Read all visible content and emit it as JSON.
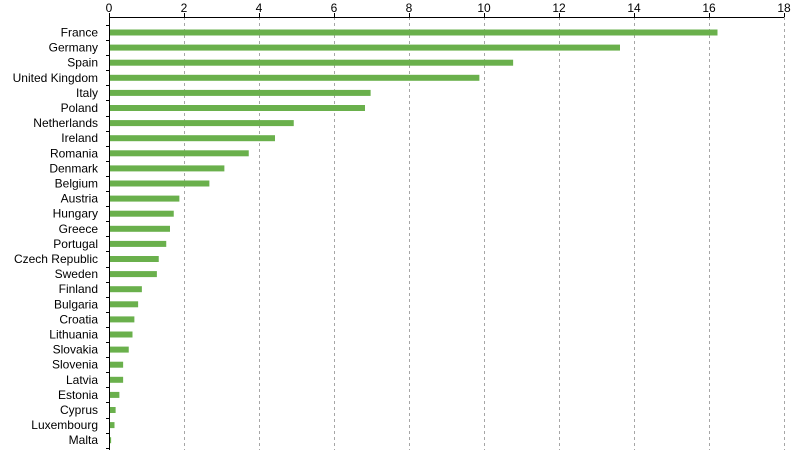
{
  "chart_data": {
    "type": "bar",
    "orientation": "horizontal",
    "x_axis_position": "top",
    "grid": true,
    "xlim": [
      0,
      18
    ],
    "xticks": [
      0,
      2,
      4,
      6,
      8,
      10,
      12,
      14,
      16,
      18
    ],
    "bar_color": "#6ab04c",
    "categories": [
      "France",
      "Germany",
      "Spain",
      "United Kingdom",
      "Italy",
      "Poland",
      "Netherlands",
      "Ireland",
      "Romania",
      "Denmark",
      "Belgium",
      "Austria",
      "Hungary",
      "Greece",
      "Portugal",
      "Czech Republic",
      "Sweden",
      "Finland",
      "Bulgaria",
      "Croatia",
      "Lithuania",
      "Slovakia",
      "Slovenia",
      "Latvia",
      "Estonia",
      "Cyprus",
      "Luxembourg",
      "Malta"
    ],
    "values": [
      16.2,
      13.6,
      10.75,
      9.85,
      6.95,
      6.8,
      4.9,
      4.4,
      3.7,
      3.05,
      2.65,
      1.85,
      1.7,
      1.6,
      1.5,
      1.3,
      1.25,
      0.85,
      0.75,
      0.65,
      0.6,
      0.5,
      0.35,
      0.35,
      0.25,
      0.15,
      0.12,
      0.03
    ]
  }
}
